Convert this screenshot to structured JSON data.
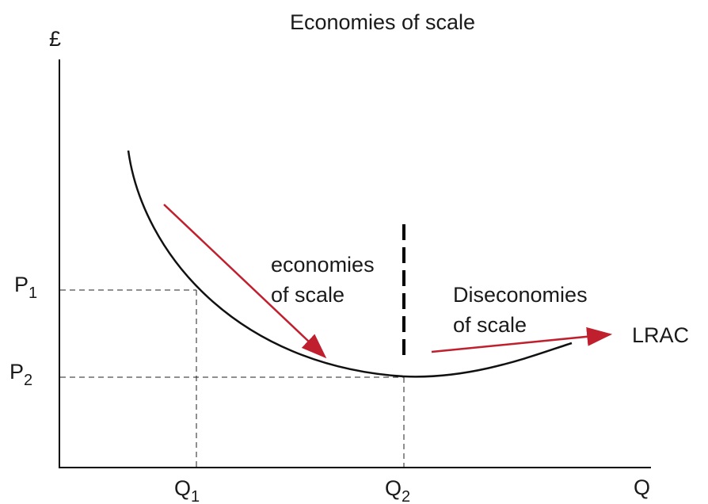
{
  "title": "Economies of scale",
  "axes": {
    "y_label": "£",
    "x_label": "Q"
  },
  "price_labels": [
    {
      "letter": "P",
      "sub": "1"
    },
    {
      "letter": "P",
      "sub": "2"
    }
  ],
  "quantity_labels": [
    {
      "letter": "Q",
      "sub": "1"
    },
    {
      "letter": "Q",
      "sub": "2"
    }
  ],
  "annotations": {
    "economies": [
      "economies",
      "of scale"
    ],
    "diseconomies": [
      "Diseconomies",
      "of scale"
    ],
    "curve_label": "LRAC"
  }
}
